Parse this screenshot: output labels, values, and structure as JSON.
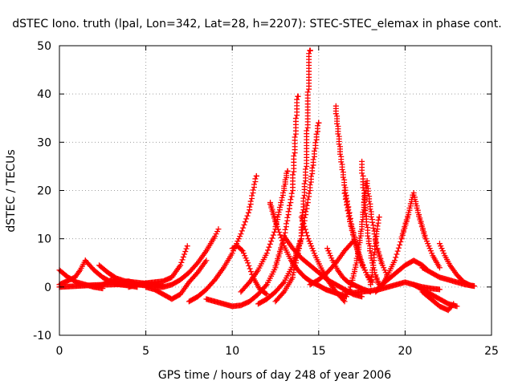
{
  "chart_data": {
    "type": "scatter",
    "title": "dSTEC Iono. truth (lpal, Lon=342, Lat=28, h=2207): STEC-STEC_elemax in phase cont.",
    "xlabel": "GPS time / hours of day 248 of year 2006",
    "ylabel": "dSTEC  / TECUs",
    "xlim": [
      0,
      25
    ],
    "ylim": [
      -10,
      50
    ],
    "x_ticks": [
      "0",
      "5",
      "10",
      "15",
      "20",
      "25"
    ],
    "y_ticks": [
      "-10",
      "0",
      "10",
      "20",
      "30",
      "40",
      "50"
    ],
    "grid": true,
    "legend": "none",
    "marker": "plus",
    "series_color": "#ff0000",
    "series": [
      {
        "x": [
          0.0,
          0.5,
          1.0,
          1.5,
          2.0,
          2.5
        ],
        "y": [
          3.5,
          2.0,
          1.0,
          0.5,
          0.0,
          -0.3
        ]
      },
      {
        "x": [
          0.0,
          0.3,
          0.6,
          0.9,
          1.2,
          1.5
        ],
        "y": [
          0.5,
          1.0,
          1.5,
          2.0,
          3.5,
          5.5
        ]
      },
      {
        "x": [
          1.5,
          2.0,
          2.5,
          3.0,
          3.5,
          4.0,
          4.5
        ],
        "y": [
          5.5,
          3.5,
          2.0,
          1.0,
          0.5,
          0.3,
          0.0
        ]
      },
      {
        "x": [
          0.0,
          1.0,
          2.0,
          3.0,
          4.0,
          5.0,
          6.0
        ],
        "y": [
          0.0,
          0.2,
          0.4,
          0.5,
          0.6,
          0.5,
          0.3
        ]
      },
      {
        "x": [
          2.0,
          2.5,
          3.0,
          3.5,
          4.0,
          4.5,
          5.0
        ],
        "y": [
          0.0,
          0.5,
          1.5,
          0.8,
          1.2,
          0.5,
          0.3
        ]
      },
      {
        "x": [
          2.3,
          2.8,
          3.3,
          3.8,
          4.3,
          4.8,
          5.3,
          5.8
        ],
        "y": [
          4.5,
          3.0,
          1.8,
          1.2,
          1.0,
          0.8,
          0.6,
          0.3
        ]
      },
      {
        "x": [
          4.0,
          4.5,
          5.0,
          5.5,
          6.0,
          6.5,
          7.0,
          7.4
        ],
        "y": [
          0.0,
          0.5,
          0.8,
          1.0,
          1.2,
          2.0,
          4.5,
          8.5
        ]
      },
      {
        "x": [
          5.0,
          5.5,
          6.0,
          6.5,
          7.0,
          7.5,
          8.0,
          8.5
        ],
        "y": [
          0.0,
          -0.5,
          -1.5,
          -2.5,
          -1.5,
          1.0,
          3.0,
          5.5
        ]
      },
      {
        "x": [
          5.5,
          6.0,
          6.5,
          7.0,
          7.5,
          8.0,
          8.5,
          9.0,
          9.2
        ],
        "y": [
          0.0,
          0.0,
          0.5,
          1.5,
          3.0,
          5.0,
          7.5,
          10.5,
          12.0
        ]
      },
      {
        "x": [
          7.5,
          8.0,
          8.5,
          9.0,
          9.5,
          10.0,
          10.5,
          11.0,
          11.2,
          11.4
        ],
        "y": [
          -3.0,
          -2.0,
          -0.5,
          1.5,
          4.0,
          7.0,
          11.0,
          16.0,
          19.5,
          23.0
        ]
      },
      {
        "x": [
          10.0,
          10.3,
          10.6,
          10.9,
          11.2,
          11.6,
          12.0
        ],
        "y": [
          8.0,
          8.5,
          7.5,
          5.0,
          2.0,
          -0.5,
          -1.5
        ]
      },
      {
        "x": [
          8.5,
          9.0,
          9.5,
          10.0,
          10.5,
          11.0,
          11.5,
          12.0,
          12.5,
          13.0,
          13.5,
          13.8
        ],
        "y": [
          -2.5,
          -3.0,
          -3.5,
          -4.0,
          -3.8,
          -3.0,
          -1.5,
          0.5,
          4.0,
          10.0,
          20.0,
          39.5
        ]
      },
      {
        "x": [
          10.5,
          11.0,
          11.5,
          12.0,
          12.5,
          13.0,
          13.2
        ],
        "y": [
          -1.0,
          1.0,
          3.5,
          7.0,
          12.0,
          20.0,
          24.0
        ]
      },
      {
        "x": [
          12.5,
          13.0,
          13.5,
          14.0,
          14.3,
          14.5
        ],
        "y": [
          -3.0,
          -1.0,
          2.0,
          10.0,
          25.0,
          49.0
        ]
      },
      {
        "x": [
          11.5,
          12.0,
          12.5,
          13.0,
          13.5,
          14.0,
          14.5,
          15.0
        ],
        "y": [
          -3.5,
          -2.5,
          -1.0,
          1.0,
          4.5,
          10.0,
          20.0,
          34.0
        ]
      },
      {
        "x": [
          12.2,
          12.6,
          13.0,
          13.4,
          13.8,
          14.2,
          14.6,
          15.0,
          15.4,
          15.8,
          16.2,
          16.6
        ],
        "y": [
          17.5,
          12.5,
          8.5,
          5.5,
          3.5,
          2.0,
          1.0,
          0.3,
          -0.5,
          -1.0,
          -1.5,
          -2.0
        ]
      },
      {
        "x": [
          14.0,
          14.4,
          14.8,
          15.2,
          15.6,
          16.0,
          16.5
        ],
        "y": [
          14.5,
          10.0,
          6.5,
          3.5,
          1.0,
          -1.0,
          -3.0
        ]
      },
      {
        "x": [
          13.0,
          13.5,
          14.0,
          14.5,
          15.0,
          15.5,
          16.0,
          16.5,
          17.0,
          17.5
        ],
        "y": [
          10.5,
          8.0,
          6.0,
          4.5,
          3.0,
          1.5,
          0.5,
          -0.5,
          -1.5,
          -2.0
        ]
      },
      {
        "x": [
          14.5,
          15.0,
          15.5,
          16.0,
          16.5,
          17.0
        ],
        "y": [
          0.5,
          1.5,
          3.0,
          5.0,
          7.5,
          9.5
        ]
      },
      {
        "x": [
          15.5,
          15.8,
          16.1,
          16.4,
          16.7,
          17.0,
          17.3,
          17.6,
          18.0
        ],
        "y": [
          8.0,
          5.5,
          3.5,
          2.0,
          1.0,
          0.5,
          0.0,
          -0.5,
          -1.0
        ]
      },
      {
        "x": [
          16.0,
          16.3,
          16.6,
          16.9,
          17.2,
          17.5,
          17.8,
          18.1
        ],
        "y": [
          37.5,
          27.0,
          19.0,
          13.0,
          8.5,
          5.0,
          2.5,
          1.0
        ]
      },
      {
        "x": [
          16.5,
          16.8,
          17.1,
          17.4,
          17.6,
          17.8,
          18.0
        ],
        "y": [
          20.0,
          14.0,
          9.5,
          6.0,
          4.0,
          2.5,
          1.0
        ]
      },
      {
        "x": [
          16.6,
          16.9,
          17.2,
          17.5,
          17.8,
          18.1,
          18.4,
          18.7,
          19.0
        ],
        "y": [
          -2.0,
          0.5,
          5.0,
          12.0,
          22.0,
          14.0,
          8.0,
          4.5,
          2.0
        ]
      },
      {
        "x": [
          17.5,
          17.7,
          17.9,
          18.1,
          18.3,
          18.5
        ],
        "y": [
          26.0,
          17.0,
          10.0,
          5.5,
          2.5,
          0.5
        ]
      },
      {
        "x": [
          16.5,
          17.0,
          17.5,
          18.0,
          18.5,
          19.0,
          19.5,
          20.0,
          20.5,
          21.0,
          21.5,
          22.0
        ],
        "y": [
          -1.0,
          -1.2,
          -1.0,
          -0.8,
          -0.5,
          0.0,
          0.5,
          1.0,
          0.5,
          0.0,
          -0.3,
          -0.5
        ]
      },
      {
        "x": [
          18.0,
          18.1,
          18.2,
          18.3,
          18.4,
          18.5
        ],
        "y": [
          0.5,
          2.5,
          5.5,
          9.0,
          12.0,
          14.5
        ]
      },
      {
        "x": [
          18.3,
          18.6,
          19.0,
          19.4,
          19.8,
          20.2,
          20.5,
          20.8,
          21.2,
          21.6,
          22.0
        ],
        "y": [
          -1.0,
          0.0,
          2.5,
          5.5,
          10.0,
          15.0,
          19.5,
          15.0,
          10.0,
          6.5,
          4.0
        ]
      },
      {
        "x": [
          18.5,
          19.0,
          19.5,
          20.0,
          20.5,
          21.0,
          21.3
        ],
        "y": [
          0.0,
          1.5,
          3.0,
          4.5,
          5.5,
          4.5,
          3.5
        ]
      },
      {
        "x": [
          20.5,
          21.0,
          21.5,
          22.0,
          22.5,
          23.0
        ],
        "y": [
          0.5,
          -0.5,
          -1.5,
          -2.5,
          -3.5,
          -4.0
        ]
      },
      {
        "x": [
          21.0,
          21.5,
          22.0,
          22.5,
          22.8
        ],
        "y": [
          -1.0,
          -2.5,
          -4.0,
          -4.8,
          -3.5
        ]
      },
      {
        "x": [
          22.0,
          22.3,
          22.6,
          23.0,
          23.4,
          23.8,
          24.0
        ],
        "y": [
          9.0,
          6.5,
          4.5,
          2.5,
          1.0,
          0.3,
          0.2
        ]
      },
      {
        "x": [
          21.0,
          21.5,
          22.0,
          22.5,
          23.0,
          23.5,
          24.0
        ],
        "y": [
          4.0,
          3.0,
          2.0,
          1.5,
          1.0,
          0.5,
          0.2
        ]
      }
    ]
  }
}
